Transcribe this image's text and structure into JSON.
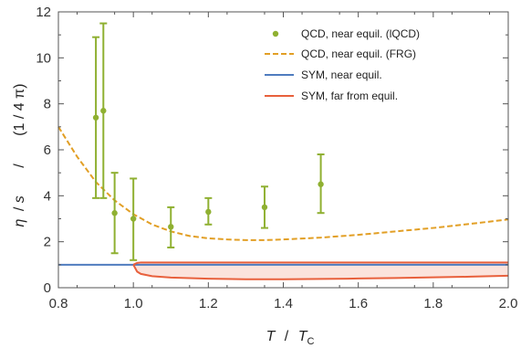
{
  "chart_data": {
    "type": "line",
    "xlim": [
      0.8,
      2.0
    ],
    "ylim": [
      0,
      12
    ],
    "xticks": [
      "0.8",
      "1.0",
      "1.2",
      "1.4",
      "1.6",
      "1.8",
      "2.0"
    ],
    "yticks": [
      "0",
      "2",
      "4",
      "6",
      "8",
      "10",
      "12"
    ],
    "xlabel": {
      "T": "T",
      "slash": "/",
      "Tc_main": "T",
      "Tc_sub": "C"
    },
    "ylabel": {
      "eta": "η",
      "slash1": "/",
      "s": "s",
      "slash2": "/",
      "unit": "(1 / 4 π)"
    },
    "grid": false,
    "legend_position": "top-right",
    "colors": {
      "lqcd": "#8fb031",
      "frg": "#e29f25",
      "sym_near": "#4f7cbf",
      "sym_far": "#e8603c",
      "sym_far_fill": "#fbe3dc",
      "axis": "#555555"
    },
    "series": [
      {
        "name": "QCD, near equil. (lQCD)",
        "style": "points-errorbars",
        "points": [
          {
            "x": 0.9,
            "y": 7.4,
            "lo": 3.9,
            "hi": 10.9
          },
          {
            "x": 0.92,
            "y": 7.7,
            "lo": 3.9,
            "hi": 11.5
          },
          {
            "x": 0.95,
            "y": 3.25,
            "lo": 1.5,
            "hi": 5.0
          },
          {
            "x": 1.0,
            "y": 3.0,
            "lo": 1.2,
            "hi": 4.75
          },
          {
            "x": 1.1,
            "y": 2.65,
            "lo": 1.75,
            "hi": 3.5
          },
          {
            "x": 1.2,
            "y": 3.3,
            "lo": 2.75,
            "hi": 3.9
          },
          {
            "x": 1.35,
            "y": 3.5,
            "lo": 2.6,
            "hi": 4.4
          },
          {
            "x": 1.5,
            "y": 4.5,
            "lo": 3.25,
            "hi": 5.8
          }
        ]
      },
      {
        "name": "QCD, near equil. (FRG)",
        "style": "dashed",
        "x": [
          0.8,
          0.85,
          0.9,
          0.95,
          1.0,
          1.05,
          1.1,
          1.15,
          1.2,
          1.25,
          1.3,
          1.35,
          1.4,
          1.5,
          1.6,
          1.7,
          1.8,
          1.9,
          2.0
        ],
        "y": [
          7.0,
          5.7,
          4.6,
          3.8,
          3.2,
          2.75,
          2.45,
          2.25,
          2.15,
          2.1,
          2.07,
          2.07,
          2.1,
          2.18,
          2.3,
          2.45,
          2.6,
          2.78,
          2.97
        ]
      },
      {
        "name": "SYM, near equil.",
        "style": "solid",
        "x": [
          0.8,
          2.0
        ],
        "y": [
          1.0,
          1.0
        ]
      },
      {
        "name": "SYM, far from equil.",
        "style": "band",
        "x": [
          1.0,
          1.01,
          1.02,
          1.05,
          1.1,
          1.2,
          1.3,
          1.4,
          1.5,
          1.6,
          1.7,
          1.8,
          1.9,
          2.0
        ],
        "upper": [
          1.0,
          1.08,
          1.1,
          1.1,
          1.1,
          1.1,
          1.1,
          1.1,
          1.1,
          1.1,
          1.1,
          1.1,
          1.1,
          1.1
        ],
        "lower": [
          1.0,
          0.7,
          0.6,
          0.5,
          0.44,
          0.39,
          0.37,
          0.37,
          0.38,
          0.4,
          0.42,
          0.45,
          0.48,
          0.52
        ]
      }
    ]
  }
}
